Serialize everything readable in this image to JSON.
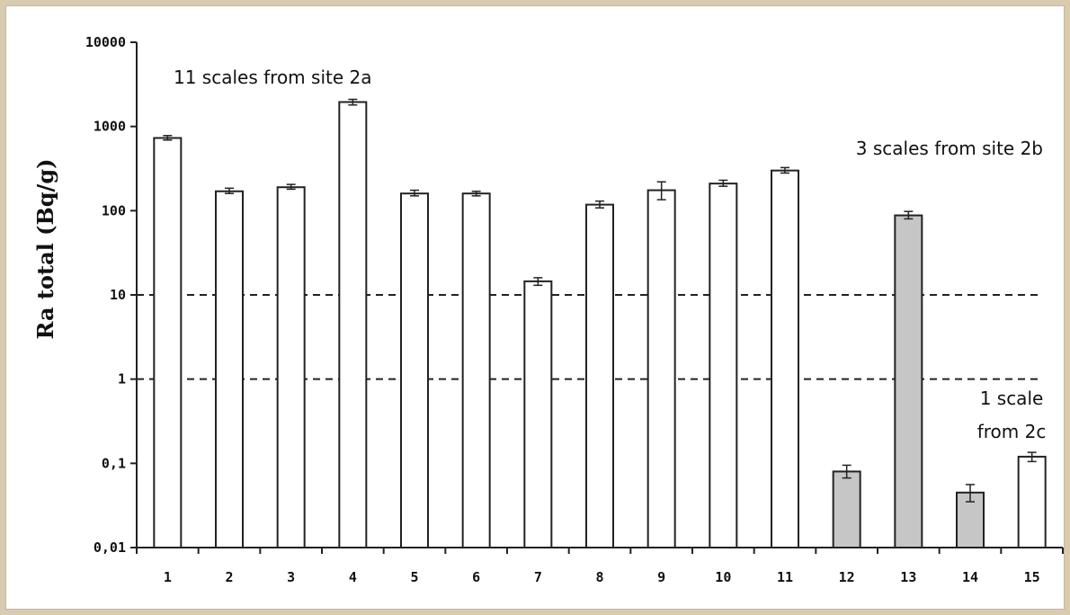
{
  "chart_data": {
    "type": "bar",
    "ylabel": "Ra  total (Bq/g)",
    "xlabel": "",
    "yscale": "log",
    "ylim": [
      0.01,
      10000
    ],
    "y_ticks": [
      {
        "value": 10000,
        "label": "10000"
      },
      {
        "value": 1000,
        "label": "1000"
      },
      {
        "value": 100,
        "label": "100"
      },
      {
        "value": 10,
        "label": "10"
      },
      {
        "value": 1,
        "label": "1"
      },
      {
        "value": 0.1,
        "label": "0,1"
      },
      {
        "value": 0.01,
        "label": "0,01"
      }
    ],
    "categories": [
      "1",
      "2",
      "3",
      "4",
      "5",
      "6",
      "7",
      "8",
      "9",
      "10",
      "11",
      "12",
      "13",
      "14",
      "15"
    ],
    "values": [
      730,
      170,
      190,
      1950,
      160,
      160,
      14.5,
      118,
      175,
      210,
      300,
      0.08,
      88,
      0.045,
      0.12
    ],
    "error_high": [
      780,
      185,
      205,
      2100,
      175,
      170,
      16,
      130,
      220,
      230,
      325,
      0.095,
      98,
      0.056,
      0.135
    ],
    "error_low": [
      690,
      160,
      180,
      1800,
      150,
      150,
      13,
      108,
      135,
      195,
      280,
      0.067,
      80,
      0.035,
      0.105
    ],
    "bar_fill": [
      "white",
      "white",
      "white",
      "white",
      "white",
      "white",
      "white",
      "white",
      "white",
      "white",
      "white",
      "gray",
      "gray",
      "gray",
      "white"
    ],
    "reference_lines": [
      10,
      1
    ],
    "colors": {
      "white_bar": "#ffffff",
      "gray_bar": "#c6c6c6",
      "bar_edge": "#222222"
    },
    "annotations": [
      {
        "text": "11 scales from site 2a",
        "near": "top-left"
      },
      {
        "text": "3 scales from site 2b",
        "near": "top-right"
      },
      {
        "text": "1 scale",
        "near": "bar-15"
      },
      {
        "text": "from 2c",
        "near": "bar-15"
      }
    ]
  }
}
